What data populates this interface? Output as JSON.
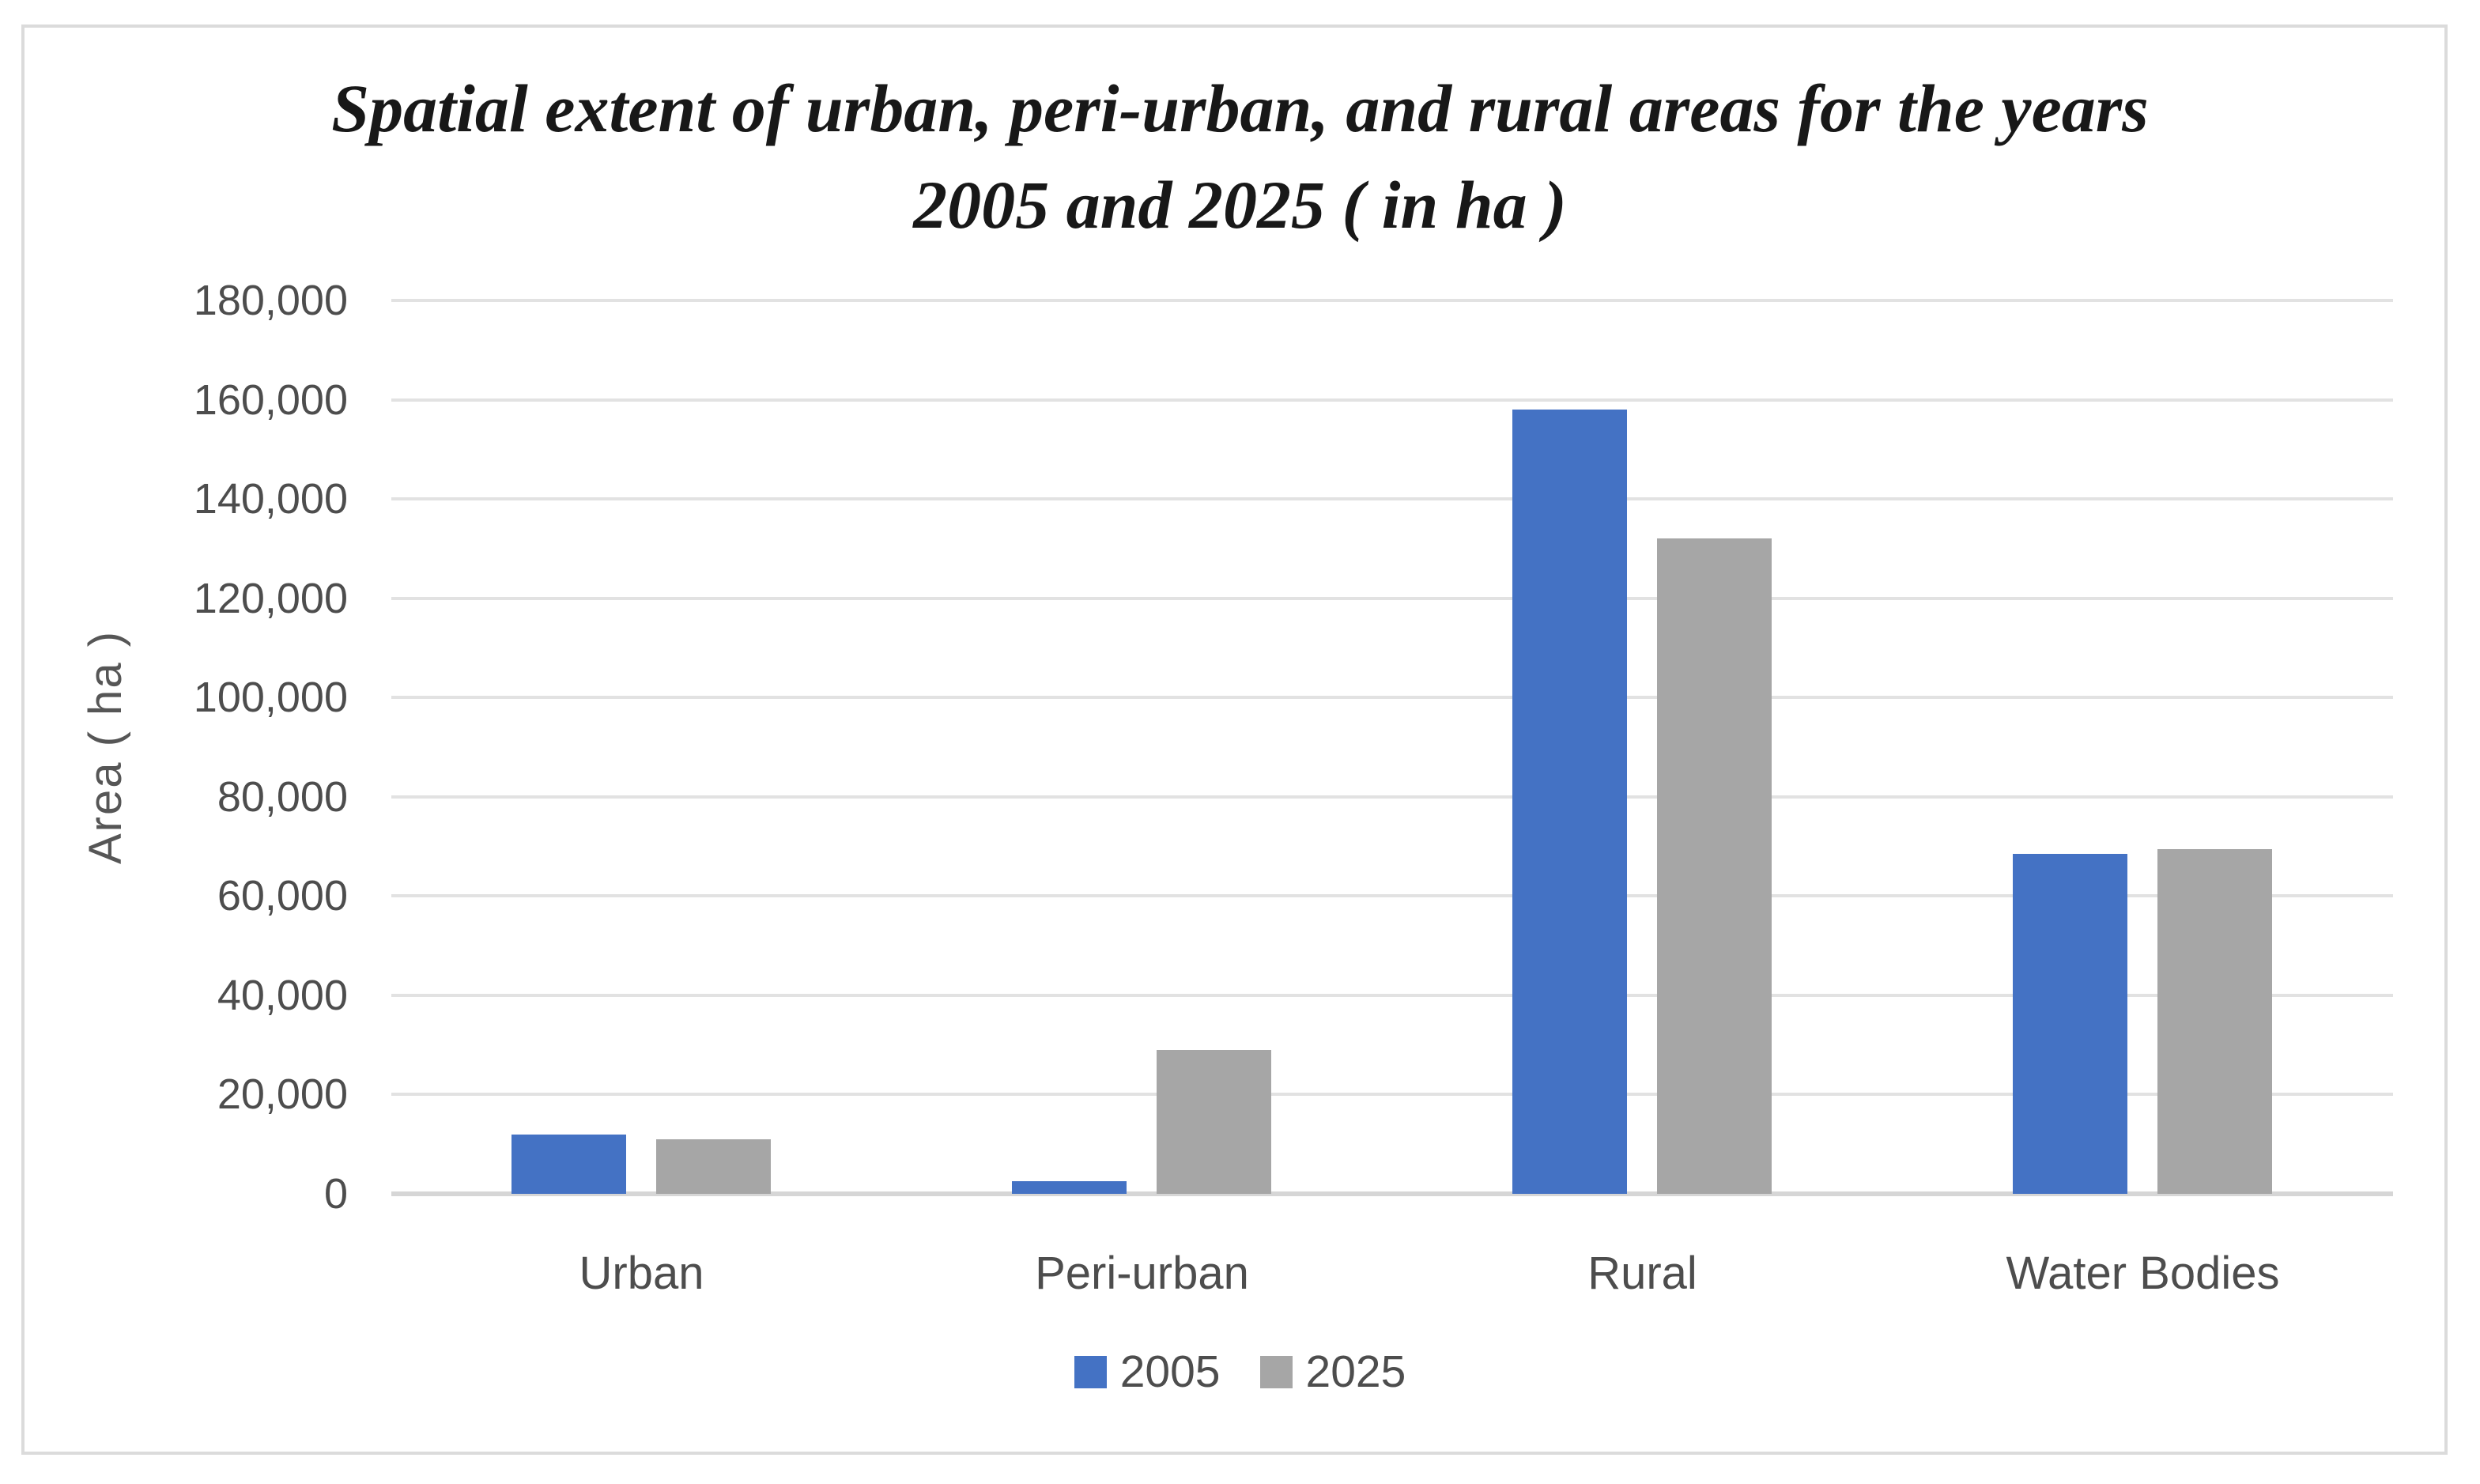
{
  "chart_data": {
    "type": "bar",
    "title": "Spatial extent of urban, peri-urban, and rural areas for the years 2005 and 2025 ( in ha )",
    "title_lines": [
      "Spatial extent of urban, peri-urban, and rural areas for the years",
      "2005 and 2025 ( in ha )"
    ],
    "categories": [
      "Urban",
      "Peri-urban",
      "Rural",
      "Water Bodies"
    ],
    "series": [
      {
        "name": "2005",
        "color": "#4472C4",
        "values": [
          12000,
          2500,
          158000,
          68500
        ]
      },
      {
        "name": "2025",
        "color": "#A6A6A6",
        "values": [
          11000,
          29000,
          132000,
          69500
        ]
      }
    ],
    "xlabel": "",
    "ylabel": "Area ( ha )",
    "ylim": [
      0,
      180000
    ],
    "ytick_step": 20000,
    "ytick_labels": [
      "0",
      "20,000",
      "40,000",
      "60,000",
      "80,000",
      "100,000",
      "120,000",
      "140,000",
      "160,000",
      "180,000"
    ],
    "grid": true,
    "legend_position": "bottom",
    "legend_entries": [
      "2005",
      "2025"
    ]
  },
  "colors": {
    "series_2005": "#4472C4",
    "series_2025": "#A6A6A6",
    "gridline": "#E2E2E2",
    "axis_line": "#D6D6D6",
    "tick_text": "#4d4d4d",
    "title_text": "#181818",
    "frame_border": "#DBDBDB",
    "background": "#ffffff"
  }
}
